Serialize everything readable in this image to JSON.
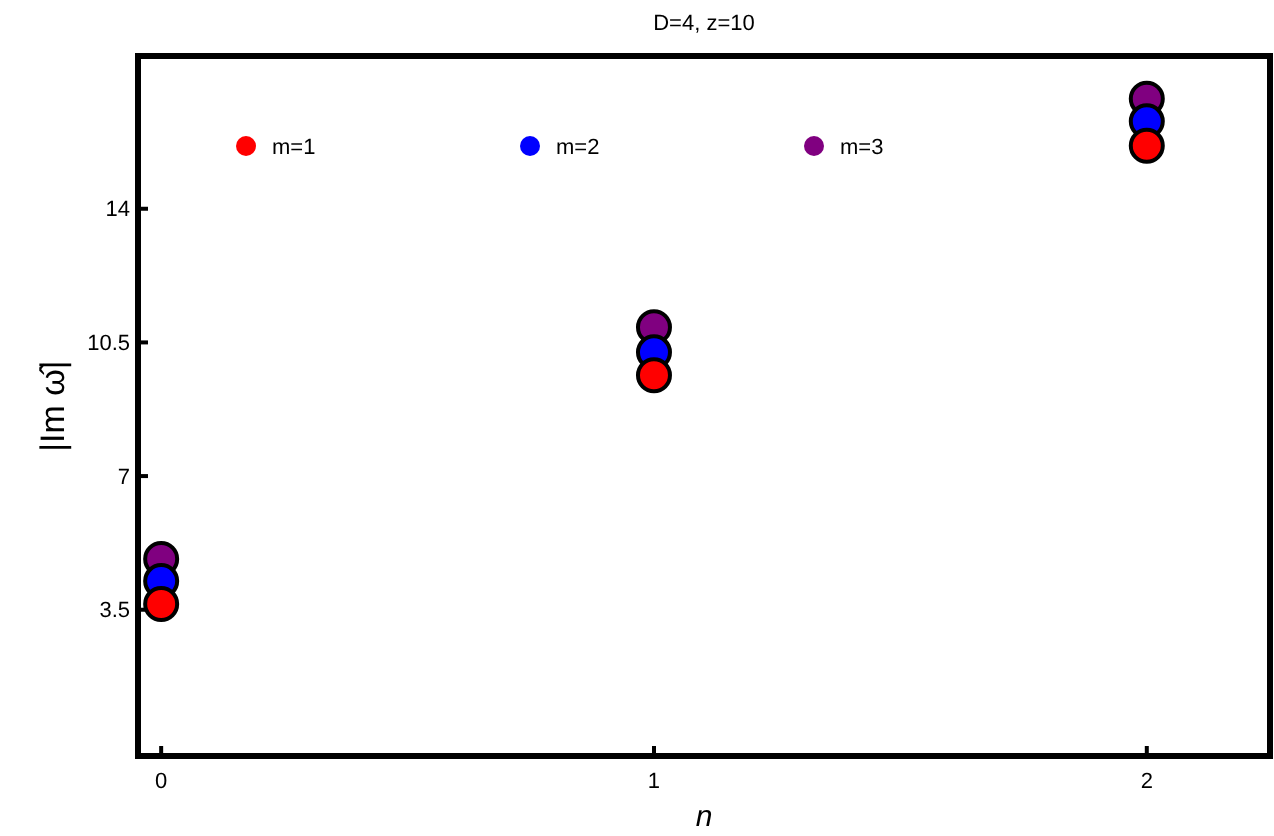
{
  "chart_data": {
    "type": "scatter",
    "title": "D=4, z=10",
    "xlabel": "n",
    "ylabel": "|Im ω̂|",
    "x": [
      0,
      1,
      2
    ],
    "series": [
      {
        "name": "m=1",
        "color": "#ff0000",
        "values": [
          3.65,
          9.64,
          15.65
        ]
      },
      {
        "name": "m=2",
        "color": "#0000ff",
        "values": [
          4.25,
          10.24,
          16.29
        ]
      },
      {
        "name": "m=3",
        "color": "#800080",
        "values": [
          4.83,
          10.9,
          16.88
        ]
      }
    ],
    "xlim": [
      -0.047,
      2.25
    ],
    "xticks": [
      0,
      1,
      2
    ],
    "ylim": [
      -0.33,
      18
    ],
    "yticks": [
      3.5,
      7,
      10.5,
      14
    ],
    "marker": "circle",
    "legend": "top",
    "grid": false
  }
}
